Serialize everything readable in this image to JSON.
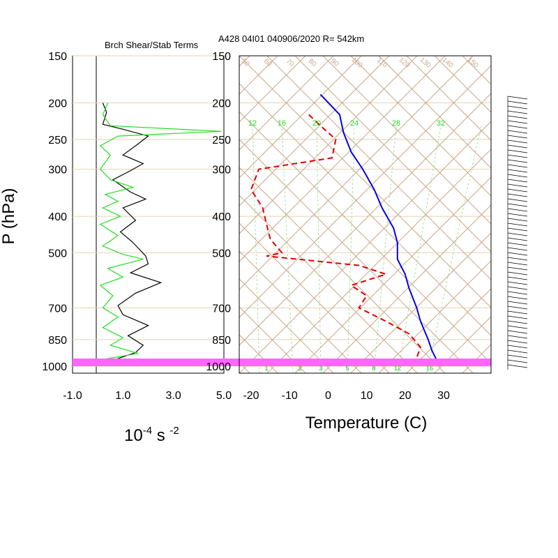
{
  "left_panel": {
    "title": "Brch Shear/Stab Terms",
    "x_ticks": [
      "-1.0",
      "1.0",
      "3.0",
      "5.0"
    ],
    "x_units_base": "10",
    "x_units_exp1": "-4",
    "x_units_mid": " s ",
    "x_units_exp2": "-2"
  },
  "right_panel": {
    "title": "A428 04I01 040906/2020 R= 542km",
    "x_ticks": [
      "-20",
      "-10",
      "0",
      "10",
      "20",
      "30"
    ],
    "x_label": "Temperature (C)"
  },
  "y_axis": {
    "label": "P (hPa)",
    "ticks": [
      "150",
      "200",
      "250",
      "300",
      "400",
      "500",
      "700",
      "850",
      "1000"
    ]
  },
  "mixing_ratio_labels": [
    "12",
    "16",
    "20",
    "24",
    "28",
    "32"
  ],
  "mixing_ratio_bottom_labels": [
    "1",
    "2",
    "3",
    "5",
    "8",
    "12",
    "16"
  ],
  "adiabat_labels": [
    "50",
    "60",
    "70",
    "80",
    "90",
    "100",
    "110",
    "120",
    "130",
    "140",
    "150"
  ],
  "colors": {
    "temperature": "#0000ee",
    "dewpoint": "#dd0000",
    "shear_term": "#000000",
    "stab_term": "#22dd22",
    "isobar": "#e8d2b4",
    "diagonal": "#c8a888",
    "highlight": "#ff66ff"
  },
  "chart_data": [
    {
      "type": "line",
      "title": "Brch Shear/Stab Terms",
      "xlabel": "10-4 s -2",
      "ylabel": "P (hPa)",
      "xlim": [
        -1.0,
        5.0
      ],
      "ylim": [
        1000,
        150
      ],
      "y_scale": "log",
      "series": [
        {
          "points": [
            [
              0.2,
              200
            ],
            [
              0.35,
              212
            ],
            [
              0.2,
              228
            ],
            [
              1.0,
              235
            ],
            [
              2.0,
              245
            ],
            [
              1.5,
              260
            ],
            [
              1.0,
              275
            ],
            [
              1.8,
              290
            ],
            [
              1.2,
              305
            ],
            [
              0.6,
              320
            ],
            [
              1.3,
              345
            ],
            [
              1.9,
              360
            ],
            [
              1.0,
              380
            ],
            [
              1.5,
              410
            ],
            [
              0.9,
              440
            ],
            [
              1.4,
              470
            ],
            [
              1.9,
              510
            ],
            [
              2.0,
              535
            ],
            [
              1.3,
              565
            ],
            [
              2.5,
              600
            ],
            [
              1.5,
              640
            ],
            [
              0.8,
              690
            ],
            [
              1.0,
              730
            ],
            [
              2.0,
              780
            ],
            [
              1.2,
              830
            ],
            [
              1.8,
              880
            ],
            [
              1.5,
              920
            ],
            [
              0.6,
              965
            ],
            [
              0.0,
              995
            ]
          ]
        },
        {
          "points": [
            [
              0.4,
              200
            ],
            [
              0.2,
              215
            ],
            [
              0.5,
              230
            ],
            [
              4.9,
              238
            ],
            [
              0.8,
              245
            ],
            [
              0.1,
              260
            ],
            [
              0.5,
              275
            ],
            [
              0.1,
              300
            ],
            [
              0.5,
              320
            ],
            [
              1.4,
              335
            ],
            [
              0.3,
              350
            ],
            [
              0.8,
              365
            ],
            [
              0.2,
              380
            ],
            [
              0.9,
              400
            ],
            [
              0.1,
              420
            ],
            [
              0.8,
              450
            ],
            [
              0.2,
              480
            ],
            [
              1.0,
              505
            ],
            [
              1.8,
              520
            ],
            [
              0.4,
              550
            ],
            [
              1.0,
              580
            ],
            [
              0.1,
              610
            ],
            [
              0.6,
              650
            ],
            [
              0.2,
              700
            ],
            [
              0.8,
              740
            ],
            [
              0.2,
              790
            ],
            [
              1.0,
              840
            ],
            [
              0.5,
              880
            ],
            [
              1.6,
              925
            ],
            [
              0.2,
              960
            ],
            [
              0.9,
              990
            ]
          ]
        }
      ]
    },
    {
      "type": "line",
      "title": "A428 04I01 040906/2020 R= 542km",
      "xlabel": "Temperature (C)",
      "ylabel": "P (hPa)",
      "xlim": [
        -23,
        42
      ],
      "ylim": [
        1000,
        150
      ],
      "y_scale": "log",
      "series": [
        {
          "points": [
            [
              -2,
              190
            ],
            [
              3,
              215
            ],
            [
              4,
              240
            ],
            [
              6,
              270
            ],
            [
              9,
              300
            ],
            [
              12,
              340
            ],
            [
              14,
              380
            ],
            [
              17,
              430
            ],
            [
              18,
              470
            ],
            [
              18,
              520
            ],
            [
              20,
              570
            ],
            [
              21,
              620
            ],
            [
              23,
              700
            ],
            [
              24,
              760
            ],
            [
              26,
              850
            ],
            [
              27,
              910
            ],
            [
              29,
              1000
            ]
          ]
        },
        {
          "points": [
            [
              -5,
              215
            ],
            [
              -2,
              230
            ],
            [
              2,
              250
            ],
            [
              1,
              280
            ],
            [
              -18,
              300
            ],
            [
              -20,
              340
            ],
            [
              -17,
              380
            ],
            [
              -16,
              420
            ],
            [
              -15,
              460
            ],
            [
              -12,
              500
            ],
            [
              -16,
              510
            ],
            [
              8,
              540
            ],
            [
              15,
              570
            ],
            [
              6,
              610
            ],
            [
              10,
              650
            ],
            [
              8,
              700
            ],
            [
              15,
              760
            ],
            [
              21,
              820
            ],
            [
              24,
              890
            ],
            [
              23,
              950
            ],
            [
              25,
              1000
            ]
          ]
        }
      ]
    }
  ]
}
